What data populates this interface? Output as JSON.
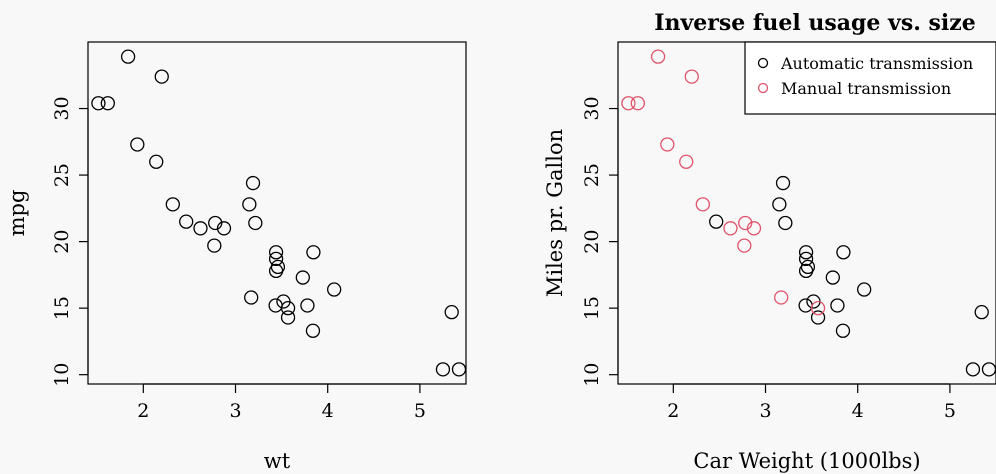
{
  "chart_data": [
    {
      "type": "scatter",
      "title": "",
      "xlabel": "wt",
      "ylabel": "mpg",
      "xlim": [
        1.4,
        5.5
      ],
      "ylim": [
        9.3,
        35.0
      ],
      "xticks": [
        2,
        3,
        4,
        5
      ],
      "yticks": [
        10,
        15,
        20,
        25,
        30
      ],
      "grid": false,
      "series": [
        {
          "color": "#000000",
          "x": [
            2.62,
            2.875,
            2.32,
            3.215,
            3.44,
            3.46,
            3.57,
            3.19,
            3.15,
            3.44,
            3.44,
            4.07,
            3.73,
            3.78,
            5.25,
            5.424,
            5.345,
            2.2,
            1.615,
            1.835,
            2.465,
            3.52,
            3.435,
            3.84,
            3.845,
            1.935,
            2.14,
            1.513,
            3.17,
            2.77,
            3.57,
            2.78
          ],
          "y": [
            21.0,
            21.0,
            22.8,
            21.4,
            18.7,
            18.1,
            14.3,
            24.4,
            22.8,
            19.2,
            17.8,
            16.4,
            17.3,
            15.2,
            10.4,
            10.4,
            14.7,
            32.4,
            30.4,
            33.9,
            21.5,
            15.5,
            15.2,
            13.3,
            19.2,
            27.3,
            26.0,
            30.4,
            15.8,
            19.7,
            15.0,
            21.4
          ]
        }
      ]
    },
    {
      "type": "scatter",
      "title": "Inverse fuel usage vs. size",
      "xlabel": "Car Weight (1000lbs)",
      "ylabel": "Miles pr. Gallon",
      "xlim": [
        1.4,
        5.5
      ],
      "ylim": [
        9.3,
        35.0
      ],
      "xticks": [
        2,
        3,
        4,
        5
      ],
      "yticks": [
        10,
        15,
        20,
        25,
        30
      ],
      "grid": false,
      "legend_position": "top-right",
      "series": [
        {
          "name": "Automatic transmission",
          "color": "#000000",
          "x": [
            3.215,
            3.44,
            3.46,
            3.57,
            3.19,
            3.15,
            3.44,
            3.44,
            4.07,
            3.73,
            3.78,
            5.25,
            5.424,
            5.345,
            2.465,
            3.52,
            3.435,
            3.84,
            3.845
          ],
          "y": [
            21.4,
            18.7,
            18.1,
            14.3,
            24.4,
            22.8,
            19.2,
            17.8,
            16.4,
            17.3,
            15.2,
            10.4,
            10.4,
            14.7,
            21.5,
            15.5,
            15.2,
            13.3,
            19.2
          ]
        },
        {
          "name": "Manual transmission",
          "color": "#df536b",
          "x": [
            2.62,
            2.875,
            2.32,
            2.2,
            1.615,
            1.835,
            1.935,
            2.14,
            1.513,
            3.17,
            2.77,
            3.57,
            2.78
          ],
          "y": [
            21.0,
            21.0,
            22.8,
            32.4,
            30.4,
            33.9,
            27.3,
            26.0,
            30.4,
            15.8,
            19.7,
            15.0,
            21.4
          ]
        }
      ]
    }
  ]
}
